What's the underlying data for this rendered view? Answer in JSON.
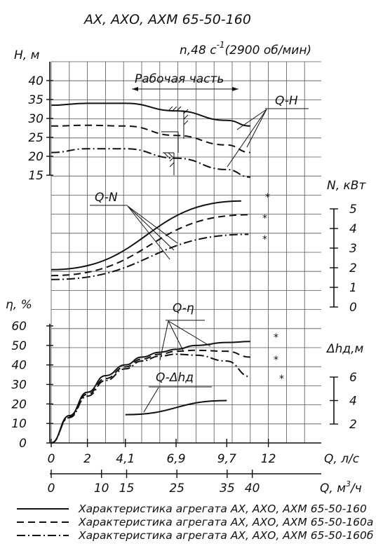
{
  "chart_data": {
    "type": "line",
    "title": "АХ, АХО, АХМ 65-50-160",
    "subtitle_n": "n,48 с",
    "subtitle_exp": "-1",
    "subtitle_rpm": "(2900 об/мин)",
    "working_zone_label": "Рабочая часть",
    "panels": {
      "head": {
        "ylabel": "Н, м",
        "ylim": [
          15,
          40
        ],
        "yticks": [
          "15",
          "20",
          "25",
          "30",
          "35",
          "40"
        ],
        "curve_label": "Q-H",
        "series": [
          {
            "style": "solid",
            "x": [
              0,
              2,
              4.1,
              6.9,
              9.7,
              11
            ],
            "y": [
              33.5,
              34,
              34,
              32,
              29.5,
              28
            ]
          },
          {
            "style": "dashed",
            "x": [
              0,
              2,
              4.1,
              6.9,
              9.7,
              11
            ],
            "y": [
              28,
              28.2,
              28,
              25.5,
              23,
              21
            ]
          },
          {
            "style": "dashdot",
            "x": [
              0,
              2,
              4.1,
              6.9,
              9.7,
              11
            ],
            "y": [
              21,
              22,
              22,
              19.5,
              16.5,
              14.5
            ]
          }
        ]
      },
      "power": {
        "ylabel": "N, кВт",
        "ylim": [
          0,
          5
        ],
        "yticks": [
          "0",
          "1",
          "2",
          "3",
          "4",
          "5"
        ],
        "curve_label": "Q-N",
        "series": [
          {
            "style": "solid",
            "x": [
              0,
              10.5
            ],
            "y": [
              1.9,
              5.4
            ]
          },
          {
            "style": "dashed",
            "x": [
              0,
              10.9
            ],
            "y": [
              1.6,
              4.7
            ]
          },
          {
            "style": "dashdot",
            "x": [
              0,
              10.9
            ],
            "y": [
              1.4,
              3.7
            ]
          }
        ]
      },
      "efficiency": {
        "ylabel": "η, %",
        "ylim": [
          0,
          60
        ],
        "yticks": [
          "0",
          "10",
          "20",
          "30",
          "40",
          "50",
          "60"
        ],
        "curve_label": "Q-η",
        "series": [
          {
            "style": "solid",
            "x": [
              0,
              1,
              2,
              3,
              4.1,
              5,
              6,
              6.9,
              8,
              9.7,
              11
            ],
            "y": [
              0,
              14,
              26,
              34.5,
              40,
              44,
              46.5,
              48,
              50,
              51.5,
              52
            ]
          },
          {
            "style": "dashed",
            "x": [
              0,
              1,
              2,
              3,
              4.1,
              5,
              6,
              6.9,
              8,
              9.7,
              11
            ],
            "y": [
              0,
              13.5,
              25,
              33,
              39,
              43,
              45.5,
              47,
              47.5,
              47,
              44
            ]
          },
          {
            "style": "dashdot",
            "x": [
              0,
              1,
              2,
              3,
              4.1,
              5,
              6,
              6.9,
              8,
              9.7,
              11
            ],
            "y": [
              0,
              13,
              24,
              32,
              38,
              42,
              44.5,
              45.5,
              45,
              42,
              34
            ]
          }
        ]
      },
      "npsh": {
        "ylabel": "Δhд,м",
        "ylim": [
          2,
          6
        ],
        "yticks": [
          "2",
          "4",
          "6"
        ],
        "curve_label": "Q-Δhд",
        "series": [
          {
            "style": "solid",
            "x": [
              4.1,
              9.7
            ],
            "y": [
              2.8,
              4
            ]
          }
        ]
      }
    },
    "x_flow_ls": {
      "label": "Q, л/с",
      "ticks": [
        "0",
        "2",
        "4,1",
        "6,9",
        "9,7",
        "12"
      ],
      "ticks_num": [
        0,
        2,
        4.1,
        6.9,
        9.7,
        12
      ],
      "xlim": [
        0,
        13.2
      ]
    },
    "x_flow_m3h": {
      "label_prefix": "Q, м",
      "label_exp": "3",
      "label_suffix": "/ч",
      "ticks": [
        "0",
        "10",
        "15",
        "25",
        "35",
        "40"
      ],
      "ticks_num": [
        0,
        10,
        15,
        25,
        35,
        40
      ]
    },
    "legend": [
      {
        "style": "solid",
        "label": "Характеристика агрегата АХ, АХО, АХМ 65-50-160"
      },
      {
        "style": "dashed",
        "label": "Характеристика агрегата АХ, АХО, АХМ 65-50-160а"
      },
      {
        "style": "dashdot",
        "label": "Характеристика агрегата АХ, АХО, АХМ 65-50-160б"
      }
    ],
    "grid": true
  }
}
